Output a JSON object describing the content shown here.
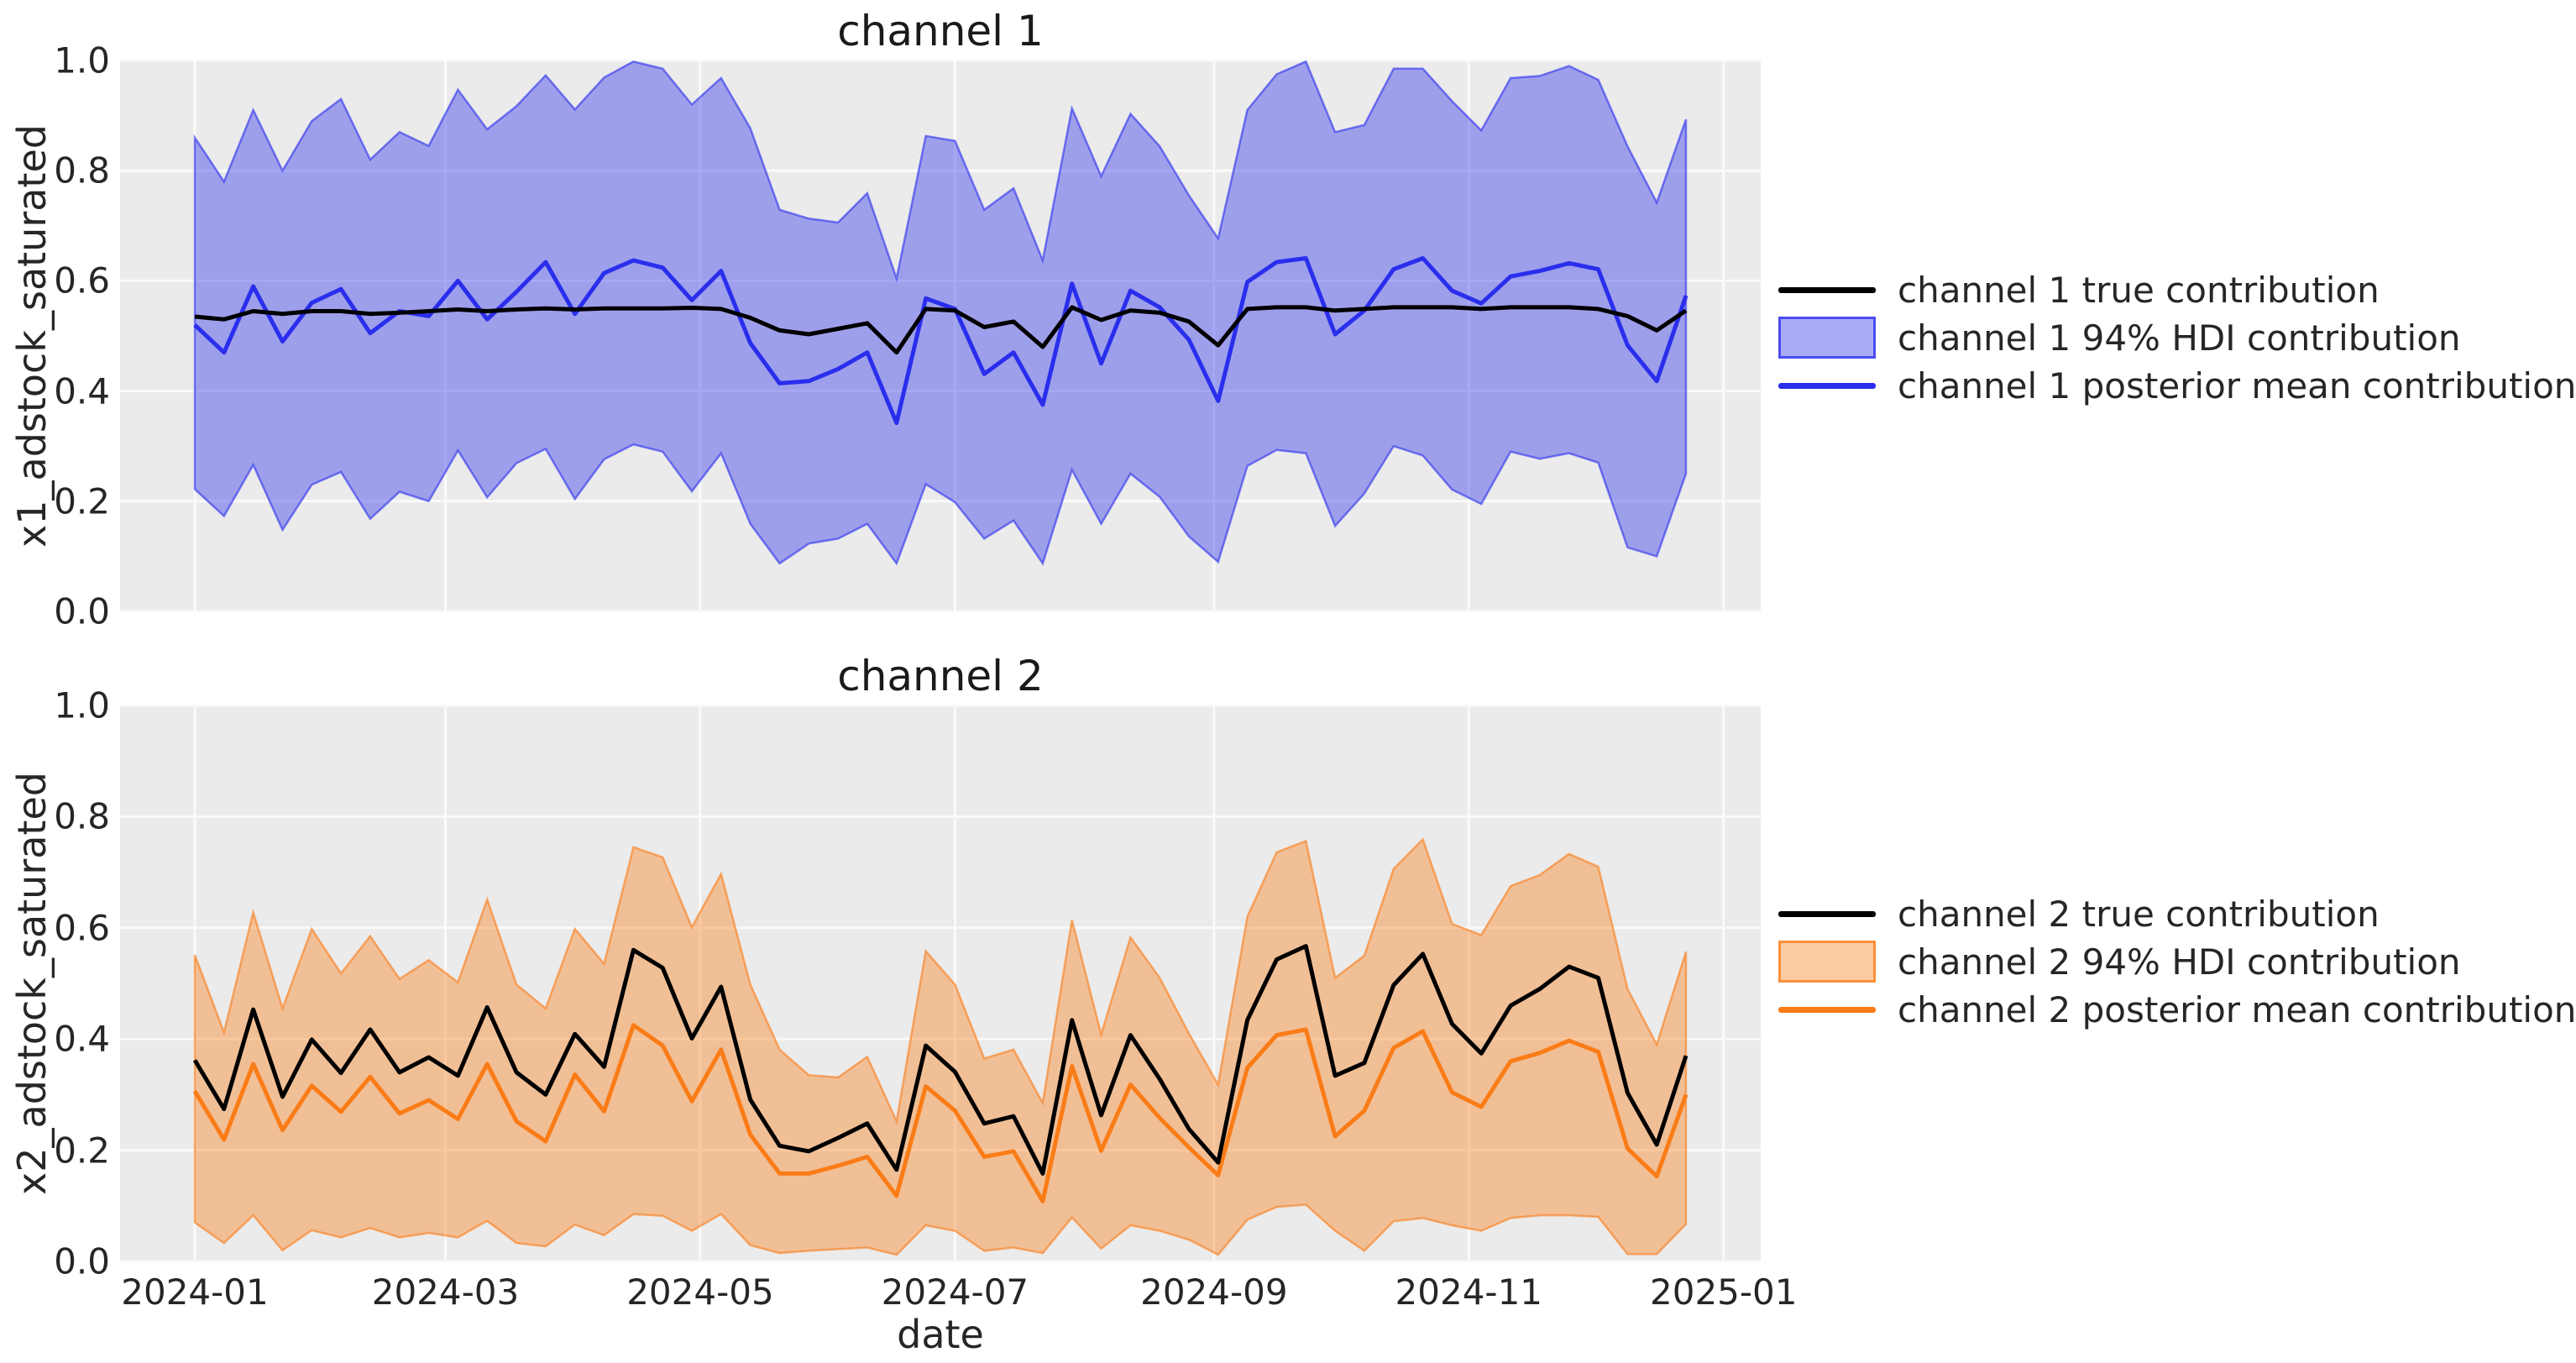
{
  "figure": {
    "background": "#ffffff",
    "axes_background": "#ebebeb",
    "grid_color": "#fafafa",
    "text_color": "#262626",
    "true_line_color": "#000000",
    "channel_colors": [
      "#2a2eec",
      "#fa7c17"
    ]
  },
  "chart_data": [
    {
      "type": "area",
      "title": "channel 1",
      "ylabel": "x1_adstock_saturated",
      "xlabel": "",
      "ylim": [
        0.0,
        1.0
      ],
      "grid": true,
      "legend_position": "right outside",
      "yticks": [
        "0.0",
        "0.2",
        "0.4",
        "0.6",
        "0.8",
        "1.0"
      ],
      "ytick_values": [
        0.0,
        0.2,
        0.4,
        0.6,
        0.8,
        1.0
      ],
      "x_tick_labels": [
        "2024-01",
        "2024-03",
        "2024-05",
        "2024-07",
        "2024-09",
        "2024-11",
        "2025-01"
      ],
      "x_tick_day_offsets": [
        0,
        60,
        121,
        182,
        244,
        305,
        366
      ],
      "show_x_tick_labels": false,
      "x_start": "2024-01-01",
      "x_freq": "weekly",
      "n_points": 52,
      "line_color": "#2a2eec",
      "legend": [
        {
          "label": "channel 1 true contribution",
          "type": "line",
          "color": "#000000"
        },
        {
          "label": "channel 1 94% HDI contribution",
          "type": "patch",
          "color": "#2a2eec"
        },
        {
          "label": "channel 1 posterior mean contribution",
          "type": "line",
          "color": "#2a2eec"
        }
      ],
      "series": [
        {
          "name": "channel 1 true contribution",
          "values": [
            0.535,
            0.53,
            0.545,
            0.54,
            0.545,
            0.545,
            0.54,
            0.542,
            0.545,
            0.548,
            0.545,
            0.548,
            0.55,
            0.548,
            0.55,
            0.55,
            0.55,
            0.551,
            0.549,
            0.533,
            0.51,
            0.503,
            0.513,
            0.523,
            0.47,
            0.549,
            0.546,
            0.516,
            0.526,
            0.48,
            0.552,
            0.529,
            0.546,
            0.542,
            0.526,
            0.483,
            0.549,
            0.552,
            0.552,
            0.546,
            0.549,
            0.552,
            0.552,
            0.552,
            0.549,
            0.552,
            0.552,
            0.552,
            0.549,
            0.536,
            0.51,
            0.546
          ]
        },
        {
          "name": "channel 1 posterior mean contribution",
          "values": [
            0.52,
            0.47,
            0.59,
            0.49,
            0.56,
            0.585,
            0.505,
            0.545,
            0.536,
            0.6,
            0.53,
            0.58,
            0.634,
            0.54,
            0.614,
            0.637,
            0.624,
            0.565,
            0.618,
            0.487,
            0.414,
            0.418,
            0.44,
            0.47,
            0.342,
            0.568,
            0.549,
            0.431,
            0.47,
            0.375,
            0.595,
            0.45,
            0.582,
            0.552,
            0.493,
            0.382,
            0.598,
            0.634,
            0.641,
            0.503,
            0.546,
            0.621,
            0.641,
            0.582,
            0.559,
            0.608,
            0.618,
            0.632,
            0.621,
            0.483,
            0.418,
            0.573
          ]
        },
        {
          "name": "channel 1 94% HDI upper",
          "values": [
            0.86,
            0.78,
            0.91,
            0.8,
            0.89,
            0.93,
            0.82,
            0.87,
            0.845,
            0.947,
            0.875,
            0.917,
            0.973,
            0.911,
            0.969,
            0.998,
            0.985,
            0.92,
            0.968,
            0.877,
            0.729,
            0.713,
            0.706,
            0.759,
            0.604,
            0.863,
            0.854,
            0.729,
            0.768,
            0.637,
            0.913,
            0.79,
            0.903,
            0.844,
            0.755,
            0.677,
            0.91,
            0.975,
            0.998,
            0.87,
            0.883,
            0.985,
            0.985,
            0.926,
            0.873,
            0.968,
            0.972,
            0.99,
            0.965,
            0.844,
            0.742,
            0.893
          ]
        },
        {
          "name": "channel 1 94% HDI lower",
          "values": [
            0.222,
            0.173,
            0.266,
            0.148,
            0.23,
            0.253,
            0.168,
            0.217,
            0.2,
            0.292,
            0.207,
            0.269,
            0.295,
            0.204,
            0.276,
            0.303,
            0.29,
            0.218,
            0.287,
            0.159,
            0.087,
            0.123,
            0.132,
            0.159,
            0.087,
            0.231,
            0.198,
            0.132,
            0.165,
            0.087,
            0.257,
            0.159,
            0.25,
            0.208,
            0.136,
            0.09,
            0.264,
            0.293,
            0.287,
            0.155,
            0.214,
            0.3,
            0.283,
            0.221,
            0.195,
            0.29,
            0.277,
            0.287,
            0.27,
            0.116,
            0.1,
            0.25
          ]
        }
      ]
    },
    {
      "type": "area",
      "title": "channel 2",
      "ylabel": "x2_adstock_saturated",
      "xlabel": "date",
      "ylim": [
        0.0,
        1.0
      ],
      "grid": true,
      "legend_position": "right outside",
      "yticks": [
        "0.0",
        "0.2",
        "0.4",
        "0.6",
        "0.8",
        "1.0"
      ],
      "ytick_values": [
        0.0,
        0.2,
        0.4,
        0.6,
        0.8,
        1.0
      ],
      "x_tick_labels": [
        "2024-01",
        "2024-03",
        "2024-05",
        "2024-07",
        "2024-09",
        "2024-11",
        "2025-01"
      ],
      "x_tick_day_offsets": [
        0,
        60,
        121,
        182,
        244,
        305,
        366
      ],
      "show_x_tick_labels": true,
      "x_start": "2024-01-01",
      "x_freq": "weekly",
      "n_points": 52,
      "line_color": "#fa7c17",
      "legend": [
        {
          "label": "channel 2 true contribution",
          "type": "line",
          "color": "#000000"
        },
        {
          "label": "channel 2 94% HDI contribution",
          "type": "patch",
          "color": "#fa7c17"
        },
        {
          "label": "channel 2 posterior mean contribution",
          "type": "line",
          "color": "#fa7c17"
        }
      ],
      "series": [
        {
          "name": "channel 2 true contribution",
          "values": [
            0.362,
            0.274,
            0.453,
            0.296,
            0.399,
            0.339,
            0.417,
            0.34,
            0.367,
            0.334,
            0.457,
            0.34,
            0.3,
            0.409,
            0.35,
            0.56,
            0.528,
            0.401,
            0.494,
            0.291,
            0.208,
            0.198,
            0.222,
            0.248,
            0.165,
            0.388,
            0.341,
            0.248,
            0.261,
            0.158,
            0.434,
            0.263,
            0.407,
            0.328,
            0.238,
            0.178,
            0.434,
            0.543,
            0.567,
            0.334,
            0.357,
            0.497,
            0.553,
            0.427,
            0.374,
            0.46,
            0.49,
            0.53,
            0.51,
            0.303,
            0.21,
            0.37
          ]
        },
        {
          "name": "channel 2 posterior mean contribution",
          "values": [
            0.306,
            0.219,
            0.355,
            0.236,
            0.316,
            0.269,
            0.332,
            0.266,
            0.29,
            0.256,
            0.355,
            0.252,
            0.216,
            0.336,
            0.27,
            0.425,
            0.388,
            0.288,
            0.381,
            0.228,
            0.158,
            0.158,
            0.172,
            0.188,
            0.118,
            0.315,
            0.271,
            0.188,
            0.198,
            0.108,
            0.351,
            0.199,
            0.318,
            0.258,
            0.205,
            0.155,
            0.348,
            0.407,
            0.417,
            0.225,
            0.271,
            0.384,
            0.414,
            0.304,
            0.278,
            0.36,
            0.375,
            0.397,
            0.377,
            0.203,
            0.153,
            0.3
          ]
        },
        {
          "name": "channel 2 94% HDI upper",
          "values": [
            0.551,
            0.412,
            0.628,
            0.455,
            0.598,
            0.518,
            0.585,
            0.508,
            0.542,
            0.502,
            0.651,
            0.498,
            0.455,
            0.598,
            0.535,
            0.745,
            0.727,
            0.601,
            0.697,
            0.498,
            0.381,
            0.335,
            0.331,
            0.368,
            0.252,
            0.558,
            0.498,
            0.365,
            0.381,
            0.285,
            0.614,
            0.408,
            0.583,
            0.51,
            0.41,
            0.318,
            0.62,
            0.736,
            0.756,
            0.51,
            0.55,
            0.706,
            0.759,
            0.607,
            0.587,
            0.675,
            0.695,
            0.733,
            0.71,
            0.49,
            0.39,
            0.557
          ]
        },
        {
          "name": "channel 2 94% HDI lower",
          "values": [
            0.07,
            0.033,
            0.083,
            0.02,
            0.056,
            0.043,
            0.06,
            0.043,
            0.051,
            0.043,
            0.073,
            0.033,
            0.027,
            0.066,
            0.047,
            0.085,
            0.082,
            0.055,
            0.085,
            0.029,
            0.015,
            0.019,
            0.022,
            0.025,
            0.012,
            0.065,
            0.055,
            0.019,
            0.025,
            0.015,
            0.079,
            0.023,
            0.065,
            0.055,
            0.039,
            0.012,
            0.075,
            0.098,
            0.102,
            0.055,
            0.019,
            0.072,
            0.078,
            0.065,
            0.055,
            0.078,
            0.083,
            0.083,
            0.08,
            0.013,
            0.013,
            0.067
          ]
        }
      ]
    }
  ]
}
